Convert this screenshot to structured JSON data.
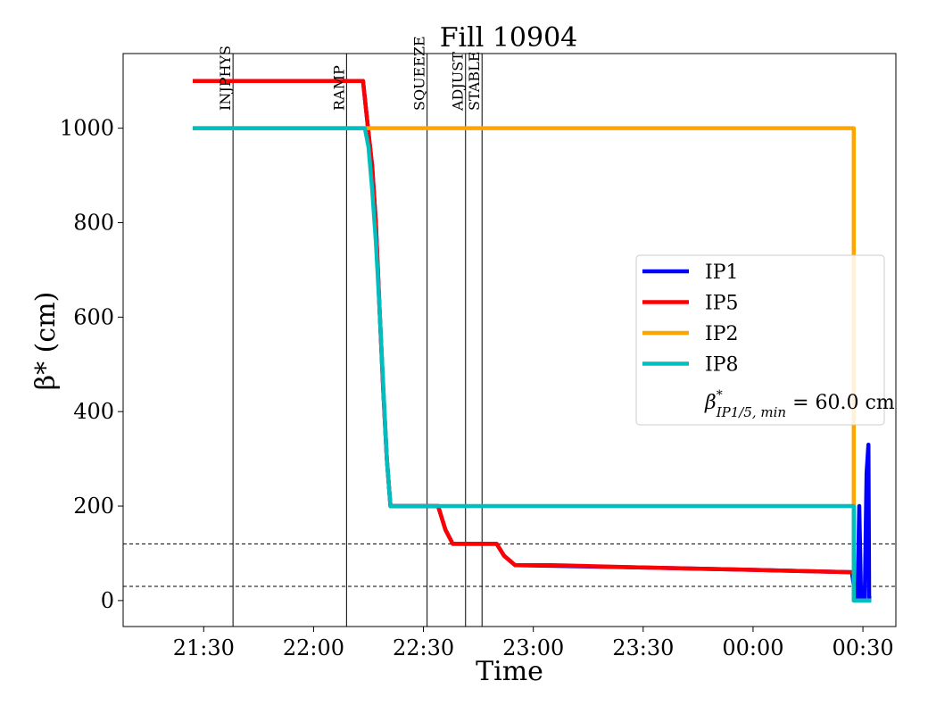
{
  "chart_data": {
    "type": "line",
    "title": "Fill 10904",
    "xlabel": "Time",
    "ylabel": "β* (cm)",
    "x_unit": "time of day (minutes past 21:00; values ≥ 180 are after midnight)",
    "xlim": [
      8,
      219
    ],
    "ylim": [
      -55,
      1158
    ],
    "x_ticks": [
      {
        "value": 30,
        "label": "21:30"
      },
      {
        "value": 60,
        "label": "22:00"
      },
      {
        "value": 90,
        "label": "22:30"
      },
      {
        "value": 120,
        "label": "23:00"
      },
      {
        "value": 150,
        "label": "23:30"
      },
      {
        "value": 180,
        "label": "00:00"
      },
      {
        "value": 210,
        "label": "00:30"
      }
    ],
    "y_ticks": [
      0,
      200,
      400,
      600,
      800,
      1000
    ],
    "grid": false,
    "legend_position": "center-right",
    "phase_markers": [
      {
        "label": "INJPHYS",
        "x": 38
      },
      {
        "label": "RAMP",
        "x": 69
      },
      {
        "label": "SQUEEZE",
        "x": 91
      },
      {
        "label": "ADJUST",
        "x": 101.5
      },
      {
        "label": "STABLE",
        "x": 106
      }
    ],
    "reference_lines": [
      {
        "y": 120,
        "style": "dashed"
      },
      {
        "y": 30,
        "style": "dashed"
      }
    ],
    "series": [
      {
        "name": "IP1",
        "color": "#0000ff",
        "x": [
          27,
          73.5,
          75,
          76,
          77,
          78,
          79,
          80,
          81,
          83,
          85,
          94,
          96,
          98,
          99,
          110,
          112,
          115,
          150,
          180,
          207,
          208,
          208.5,
          209,
          209.5,
          210.5,
          211,
          211.5,
          211.7,
          212,
          212.3
        ],
        "y": [
          1100,
          1100,
          990,
          920,
          800,
          620,
          450,
          300,
          200,
          200,
          200,
          200,
          150,
          120,
          120,
          120,
          95,
          75,
          70,
          65,
          60,
          5,
          5,
          200,
          5,
          5,
          270,
          330,
          5,
          5,
          5
        ]
      },
      {
        "name": "IP5",
        "color": "#ff0000",
        "x": [
          27,
          73.5,
          75,
          76,
          77,
          78,
          79,
          80,
          81,
          83,
          85,
          94,
          96,
          98,
          99,
          110,
          112,
          115,
          125,
          150,
          180,
          207
        ],
        "y": [
          1100,
          1100,
          990,
          920,
          800,
          620,
          450,
          300,
          200,
          200,
          200,
          200,
          150,
          120,
          120,
          120,
          95,
          75,
          75,
          70,
          65,
          60
        ]
      },
      {
        "name": "IP2",
        "color": "#ffa500",
        "x": [
          27,
          207.5,
          207.5,
          212.3
        ],
        "y": [
          1000,
          1000,
          0,
          0
        ]
      },
      {
        "name": "IP8",
        "color": "#00bebe",
        "x": [
          27,
          74,
          75,
          76,
          77,
          78,
          79,
          80,
          81,
          83,
          207.5,
          207.5,
          212.3
        ],
        "y": [
          1000,
          1000,
          960,
          870,
          760,
          620,
          460,
          300,
          200,
          200,
          200,
          0,
          0
        ]
      }
    ],
    "legend_entries": [
      {
        "name": "IP1",
        "color": "#0000ff"
      },
      {
        "name": "IP5",
        "color": "#ff0000"
      },
      {
        "name": "IP2",
        "color": "#ffa500"
      },
      {
        "name": "IP8",
        "color": "#00bebe"
      }
    ],
    "annotation": {
      "symbol": "β",
      "sup": "*",
      "sub": "IP1/5, min",
      "text": " = 60.0 cm"
    }
  }
}
